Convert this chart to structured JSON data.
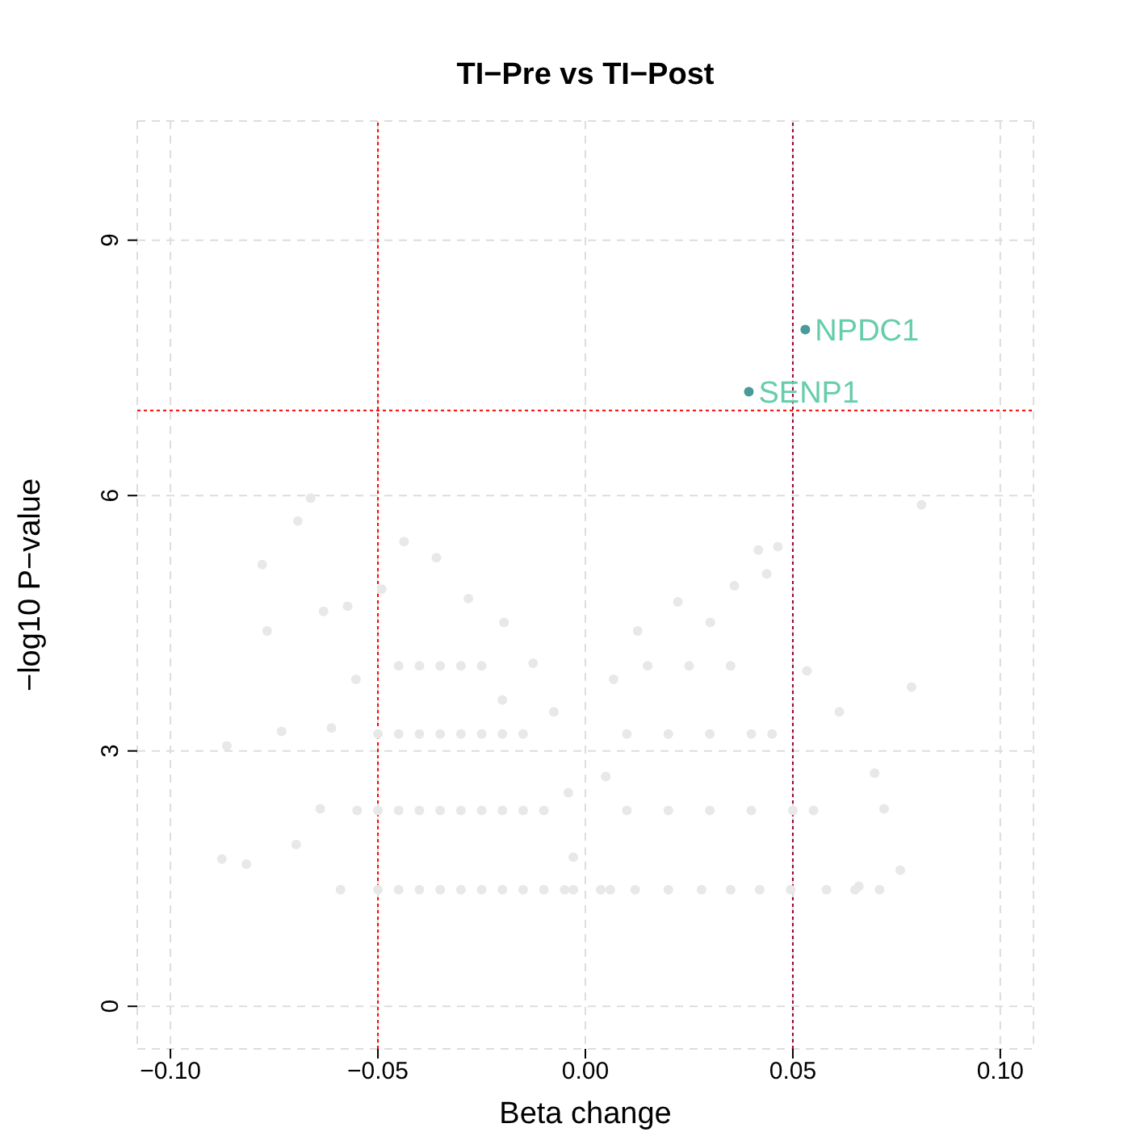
{
  "chart_data": {
    "type": "scatter",
    "title": "TI−Pre vs TI−Post",
    "xlabel": "Beta change",
    "ylabel": "−log10 P−value",
    "xlim": [
      -0.108,
      0.108
    ],
    "ylim": [
      -0.5,
      10.4
    ],
    "xticks": [
      {
        "value": -0.1,
        "label": "−0.10"
      },
      {
        "value": -0.05,
        "label": "−0.05"
      },
      {
        "value": 0,
        "label": "0.00"
      },
      {
        "value": 0.05,
        "label": "0.05"
      },
      {
        "value": 0.1,
        "label": "0.10"
      }
    ],
    "yticks": [
      0,
      3,
      6,
      9
    ],
    "grid": true,
    "marker": "circle",
    "legend": false,
    "series": [
      {
        "color": "#e8e8e8",
        "x": [
          -0.0876,
          -0.0817,
          -0.0864,
          -0.0779,
          -0.0767,
          -0.0693,
          -0.0662,
          -0.0732,
          -0.0697,
          -0.0631,
          -0.0573,
          -0.0491,
          -0.0437,
          -0.0359,
          -0.0282,
          -0.0196,
          -0.0126,
          -0.0076,
          -0.0041,
          -0.0029,
          -0.0029,
          -0.059,
          -0.0639,
          -0.0612,
          -0.0553,
          -0.05,
          -0.045,
          -0.04,
          -0.035,
          -0.03,
          -0.025,
          -0.02,
          -0.015,
          -0.01,
          -0.005,
          -0.055,
          -0.05,
          -0.045,
          -0.04,
          -0.035,
          -0.03,
          -0.025,
          -0.02,
          -0.015,
          -0.01,
          -0.05,
          -0.045,
          -0.04,
          -0.035,
          -0.03,
          -0.025,
          -0.02,
          -0.015,
          -0.045,
          -0.04,
          -0.035,
          -0.03,
          -0.025,
          -0.02,
          0.0037,
          0.0049,
          0.0068,
          0.0126,
          0.0223,
          0.0301,
          0.0359,
          0.0417,
          0.0464,
          0.0437,
          0.0534,
          0.0612,
          0.065,
          0.0659,
          0.0697,
          0.0709,
          0.0759,
          0.0786,
          0.081,
          0.072,
          0.0581,
          0.0495,
          0.042,
          0.035,
          0.028,
          0.02,
          0.012,
          0.006,
          0.01,
          0.02,
          0.03,
          0.04,
          0.05,
          0.055,
          0.01,
          0.02,
          0.03,
          0.04,
          0.045,
          0.015,
          0.025,
          0.035
        ],
        "values": [
          1.73,
          1.67,
          3.06,
          5.19,
          4.41,
          5.7,
          5.97,
          3.23,
          1.9,
          4.64,
          4.7,
          4.9,
          5.46,
          5.27,
          4.79,
          4.51,
          4.03,
          3.46,
          2.51,
          1.75,
          1.37,
          1.37,
          2.32,
          3.27,
          3.84,
          1.37,
          1.37,
          1.37,
          1.37,
          1.37,
          1.37,
          1.37,
          1.37,
          1.37,
          1.37,
          2.3,
          2.3,
          2.3,
          2.3,
          2.3,
          2.3,
          2.3,
          2.3,
          2.3,
          2.3,
          3.2,
          3.2,
          3.2,
          3.2,
          3.2,
          3.2,
          3.2,
          3.2,
          4.0,
          4.0,
          4.0,
          4.0,
          4.0,
          3.6,
          1.37,
          2.7,
          3.84,
          4.41,
          4.75,
          4.51,
          4.94,
          5.36,
          5.4,
          5.08,
          3.94,
          3.46,
          1.37,
          1.41,
          2.74,
          1.37,
          1.6,
          3.75,
          5.89,
          2.32,
          1.37,
          1.37,
          1.37,
          1.37,
          1.37,
          1.37,
          1.37,
          1.37,
          2.3,
          2.3,
          2.3,
          2.3,
          2.3,
          2.3,
          3.2,
          3.2,
          3.2,
          3.2,
          3.2,
          4.0,
          4.0,
          4.0
        ]
      },
      {
        "color": "#4a9a9a",
        "x": [
          0.053,
          0.0394
        ],
        "values": [
          7.95,
          7.22
        ]
      }
    ],
    "annotations": [
      {
        "text": "NPDC1",
        "x": 0.053,
        "y": 7.95
      },
      {
        "text": "SENP1",
        "x": 0.0394,
        "y": 7.22
      }
    ],
    "ref_lines": [
      {
        "axis": "x",
        "value": -0.05,
        "color": "#ff0000",
        "line_style": "dotted"
      },
      {
        "axis": "x",
        "value": 0.05,
        "color": "#990033",
        "line_style": "dotted"
      },
      {
        "axis": "y",
        "value": 7,
        "color": "#ff0000",
        "line_style": "dotted"
      }
    ]
  }
}
